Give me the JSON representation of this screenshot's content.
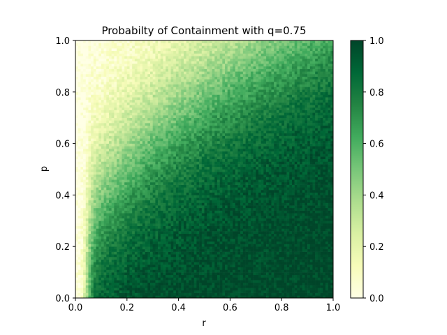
{
  "chart_data": {
    "type": "heatmap",
    "title": "Probabilty of Containment with q=0.75",
    "xlabel": "r",
    "ylabel": "p",
    "xlim": [
      0.0,
      1.0
    ],
    "ylim": [
      0.0,
      1.0
    ],
    "x_ticks": [
      "0.0",
      "0.2",
      "0.4",
      "0.6",
      "0.8",
      "1.0"
    ],
    "y_ticks": [
      "0.0",
      "0.2",
      "0.4",
      "0.6",
      "0.8",
      "1.0"
    ],
    "grid_resolution": 100,
    "value_description": "Probability of containment, roughly 0 near r=0 / high p and approaching 1 at high r / low p; boundary curve approx p = r^0.5 with a sharp rise near r=0.05",
    "samples": [
      {
        "r": 0.02,
        "p": 0.1,
        "value": 0.1
      },
      {
        "r": 0.05,
        "p": 0.1,
        "value": 0.6
      },
      {
        "r": 0.1,
        "p": 0.2,
        "value": 0.85
      },
      {
        "r": 0.2,
        "p": 0.8,
        "value": 0.2
      },
      {
        "r": 0.4,
        "p": 0.6,
        "value": 0.6
      },
      {
        "r": 0.6,
        "p": 0.2,
        "value": 1.0
      },
      {
        "r": 0.8,
        "p": 0.8,
        "value": 0.85
      },
      {
        "r": 1.0,
        "p": 1.0,
        "value": 0.95
      }
    ],
    "colorbar": {
      "colormap": "YlGn",
      "range": [
        0.0,
        1.0
      ],
      "ticks": [
        "0.0",
        "0.2",
        "0.4",
        "0.6",
        "0.8",
        "1.0"
      ],
      "colors": [
        "#ffffe5",
        "#f7fcb9",
        "#d9f0a3",
        "#addd8e",
        "#78c679",
        "#41ab5d",
        "#238443",
        "#006837",
        "#004529"
      ]
    }
  }
}
